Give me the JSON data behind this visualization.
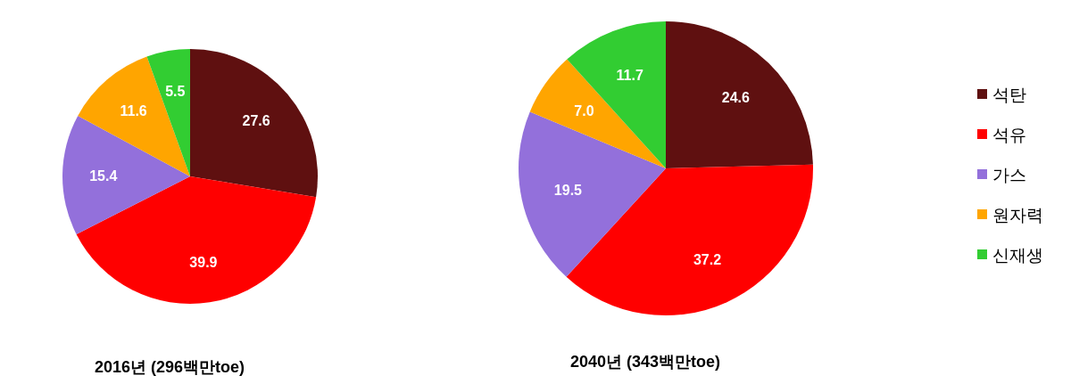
{
  "chart_data": [
    {
      "type": "pie",
      "title": "2016년 (296백만toe)",
      "categories": [
        null,
        null,
        null,
        null,
        null
      ],
      "values": [
        27.6,
        39.9,
        15.4,
        11.6,
        5.5
      ],
      "colors": [
        "#5f1010",
        "#ff0000",
        "#9370db",
        "#ffa500",
        "#32cd32"
      ],
      "value_labels": [
        "27.6",
        "39.9",
        "15.4",
        "11.6",
        "5.5"
      ]
    },
    {
      "type": "pie",
      "title": "2040년 (343백만toe)",
      "categories": [
        "석탄",
        "석유",
        "가스",
        "원자력",
        "신재생"
      ],
      "values": [
        24.6,
        37.2,
        19.5,
        7.0,
        11.7
      ],
      "colors": [
        "#5f1010",
        "#ff0000",
        "#9370db",
        "#ffa500",
        "#32cd32"
      ],
      "value_labels": [
        "24.6",
        "37.2",
        "19.5",
        "7.0",
        "11.7"
      ],
      "legend": "right"
    }
  ]
}
